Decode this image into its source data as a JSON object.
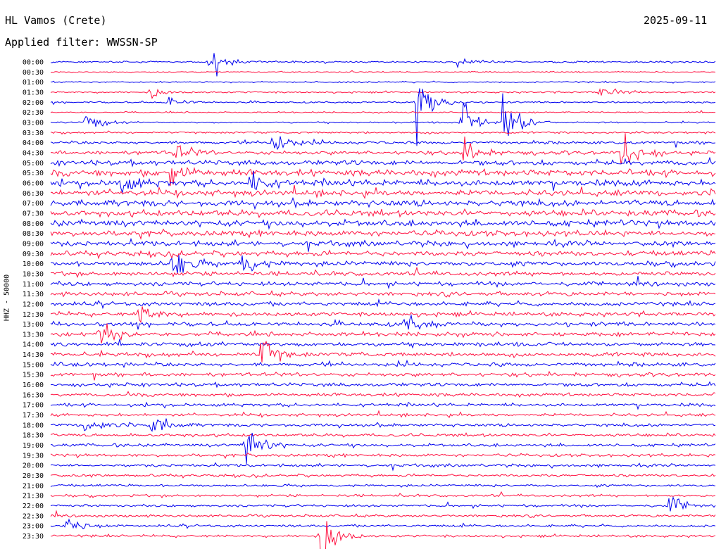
{
  "header": {
    "station": "HL Vamos (Crete)",
    "date": "2025-09-11",
    "filter": "Applied filter: WWSSN-SP"
  },
  "channel_label": "HHZ - 50000",
  "colors": {
    "odd": "#0000ee",
    "even": "#ff1040"
  },
  "chart_data": {
    "type": "line",
    "title": "HL Vamos (Crete)",
    "subtitle": "Applied filter: WWSSN-SP",
    "ylabel": "HHZ - 50000",
    "y_tick_labels": [
      "00:00",
      "00:30",
      "01:00",
      "01:30",
      "02:00",
      "02:30",
      "03:00",
      "03:30",
      "04:00",
      "04:30",
      "05:00",
      "05:30",
      "06:00",
      "06:30",
      "07:00",
      "07:30",
      "08:00",
      "08:30",
      "09:00",
      "09:30",
      "10:00",
      "10:30",
      "11:00",
      "11:30",
      "12:00",
      "12:30",
      "13:00",
      "13:30",
      "14:00",
      "14:30",
      "15:00",
      "15:30",
      "16:00",
      "16:30",
      "17:00",
      "17:30",
      "18:00",
      "18:30",
      "19:00",
      "19:30",
      "20:00",
      "20:30",
      "21:00",
      "21:30",
      "22:00",
      "22:30",
      "23:00",
      "23:30"
    ],
    "row_noise_level": [
      0.8,
      0.6,
      0.7,
      0.8,
      0.8,
      0.7,
      0.8,
      1.0,
      1.5,
      1.8,
      2.5,
      3.0,
      3.0,
      3.0,
      3.0,
      3.0,
      3.0,
      2.8,
      2.5,
      2.5,
      2.3,
      2.0,
      2.0,
      2.0,
      2.0,
      2.0,
      2.0,
      2.0,
      2.0,
      2.0,
      2.0,
      1.8,
      1.8,
      1.6,
      1.6,
      1.5,
      1.5,
      1.5,
      1.5,
      1.5,
      1.4,
      1.3,
      1.2,
      1.2,
      1.2,
      1.2,
      1.2,
      1.2
    ],
    "events": [
      {
        "row": 0,
        "minute": 7.2,
        "amplitude": 18
      },
      {
        "row": 0,
        "minute": 18.4,
        "amplitude": 6
      },
      {
        "row": 3,
        "minute": 4.5,
        "amplitude": 6
      },
      {
        "row": 3,
        "minute": 24.8,
        "amplitude": 8
      },
      {
        "row": 4,
        "minute": 5.3,
        "amplitude": 6
      },
      {
        "row": 4,
        "minute": 16.5,
        "amplitude": 40
      },
      {
        "row": 6,
        "minute": 1.6,
        "amplitude": 10
      },
      {
        "row": 6,
        "minute": 18.5,
        "amplitude": 25
      },
      {
        "row": 6,
        "minute": 20.4,
        "amplitude": 40
      },
      {
        "row": 8,
        "minute": 10.0,
        "amplitude": 18
      },
      {
        "row": 9,
        "minute": 5.6,
        "amplitude": 12
      },
      {
        "row": 9,
        "minute": 18.6,
        "amplitude": 16
      },
      {
        "row": 9,
        "minute": 25.8,
        "amplitude": 32
      },
      {
        "row": 11,
        "minute": 5.4,
        "amplitude": 14
      },
      {
        "row": 12,
        "minute": 9.0,
        "amplitude": 14
      },
      {
        "row": 12,
        "minute": 3.2,
        "amplitude": 10
      },
      {
        "row": 20,
        "minute": 5.5,
        "amplitude": 18
      },
      {
        "row": 20,
        "minute": 8.6,
        "amplitude": 14
      },
      {
        "row": 25,
        "minute": 4.0,
        "amplitude": 12
      },
      {
        "row": 26,
        "minute": 16.0,
        "amplitude": 12
      },
      {
        "row": 27,
        "minute": 2.2,
        "amplitude": 15
      },
      {
        "row": 29,
        "minute": 9.5,
        "amplitude": 20
      },
      {
        "row": 36,
        "minute": 1.6,
        "amplitude": 15
      },
      {
        "row": 36,
        "minute": 4.6,
        "amplitude": 14
      },
      {
        "row": 38,
        "minute": 8.8,
        "amplitude": 28
      },
      {
        "row": 44,
        "minute": 27.9,
        "amplitude": 12
      },
      {
        "row": 46,
        "minute": 0.6,
        "amplitude": 12
      },
      {
        "row": 47,
        "minute": 12.2,
        "amplitude": 34
      }
    ]
  }
}
